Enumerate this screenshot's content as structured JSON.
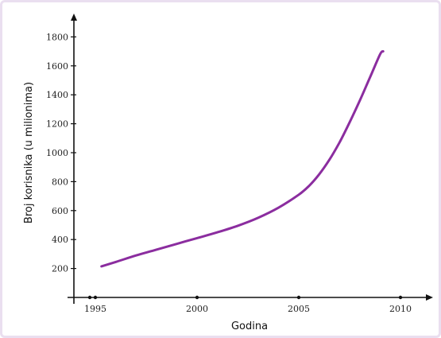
{
  "chart_data": {
    "type": "line",
    "title": "",
    "xlabel": "Godina",
    "ylabel": "Broj korisnika (u milionima)",
    "xlim": [
      1994.2,
      2011.4
    ],
    "ylim": [
      0,
      1900
    ],
    "xticks": [
      1995,
      2000,
      2005,
      2010
    ],
    "xtick_labels": [
      "1995",
      "2000",
      "2005",
      "2010"
    ],
    "yticks": [
      200,
      400,
      600,
      800,
      1000,
      1200,
      1400,
      1600,
      1800
    ],
    "ytick_labels": [
      "200",
      "400",
      "600",
      "800",
      "1000",
      "1200",
      "1400",
      "1600",
      "1800"
    ],
    "grid": false,
    "series": [
      {
        "color": "#8b2d9f",
        "x": [
          1995.3,
          1996,
          1997,
          1998,
          1999,
          2000,
          2001,
          2002,
          2003,
          2004,
          2005,
          2005.5,
          2006,
          2006.5,
          2007,
          2007.5,
          2008,
          2008.5,
          2009,
          2009.15
        ],
        "y": [
          215,
          245,
          290,
          330,
          370,
          410,
          450,
          495,
          550,
          620,
          710,
          770,
          850,
          950,
          1070,
          1210,
          1360,
          1520,
          1680,
          1700
        ]
      }
    ]
  }
}
